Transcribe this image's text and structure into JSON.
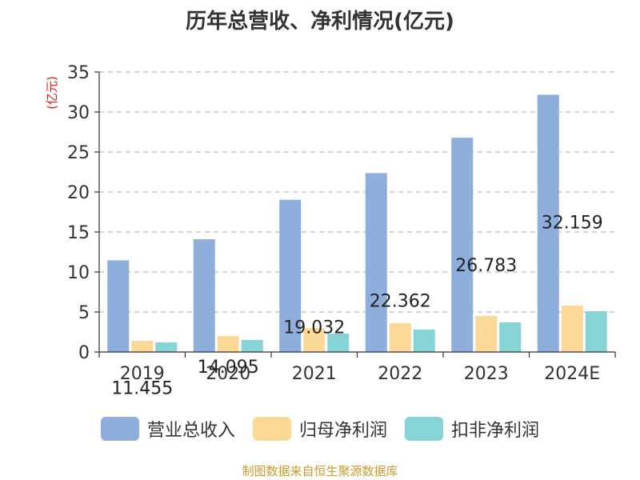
{
  "chart_data": {
    "type": "bar",
    "title": "历年总营收、净利情况(亿元)",
    "ylabel": "(亿元)",
    "categories": [
      "2019",
      "2020",
      "2021",
      "2022",
      "2023",
      "2024E"
    ],
    "ylim": [
      0,
      35
    ],
    "yticks": [
      0,
      5,
      10,
      15,
      20,
      25,
      30,
      35
    ],
    "grid": true,
    "legend_position": "bottom",
    "series": [
      {
        "name": "营业总收入",
        "color": "#8eafdc",
        "values": [
          11.455,
          14.095,
          19.032,
          22.362,
          26.783,
          32.159
        ],
        "labels": [
          "11.455",
          "14.095",
          "19.032",
          "22.362",
          "26.783",
          "32.159"
        ]
      },
      {
        "name": "归母净利润",
        "color": "#fdd998",
        "values": [
          1.4,
          2.0,
          3.0,
          3.6,
          4.5,
          5.8
        ]
      },
      {
        "name": "扣非净利润",
        "color": "#86d4d6",
        "values": [
          1.2,
          1.5,
          2.3,
          2.8,
          3.7,
          5.1
        ]
      }
    ]
  },
  "footer": {
    "source": "制图数据来自恒生聚源数据库",
    "source_color": "#c99b2e"
  },
  "colors": {
    "axis": "#333333",
    "grid": "#bbbbbb",
    "ylabel": "#e8191b"
  }
}
